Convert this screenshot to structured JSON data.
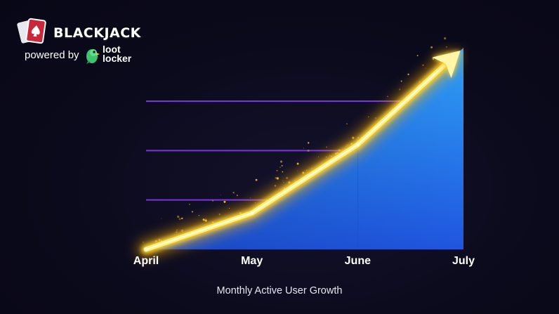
{
  "brand": {
    "title": "BLACKJACK",
    "powered_by": "powered by",
    "partner_line1": "loot",
    "partner_line2": "locker",
    "card_icon": "ace-of-spades-card-icon",
    "partner_icon": "parrot-icon"
  },
  "colors": {
    "background": "#0b0a1c",
    "gridline": "#6a25b8",
    "area_top": "#2ea0f5",
    "area_bottom": "#1f55e0",
    "line_glow": "#ffb000",
    "line_core": "#fff26a",
    "label": "#ffffff"
  },
  "chart_data": {
    "type": "area",
    "title": "Monthly Active User Growth",
    "categories": [
      "April",
      "May",
      "June",
      "July"
    ],
    "values": [
      0,
      18,
      52,
      100
    ],
    "ylim": [
      0,
      100
    ],
    "xlabel": "",
    "ylabel": "",
    "grid": true,
    "legend": "none",
    "arrow_at_end": true
  }
}
